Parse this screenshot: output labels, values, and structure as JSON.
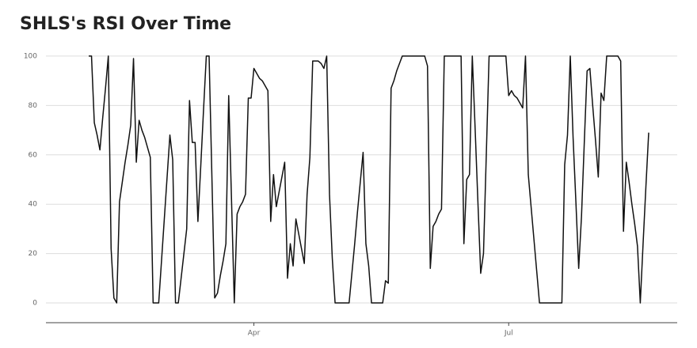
{
  "chart_data": {
    "type": "line",
    "title": "SHLS's RSI Over Time",
    "categories": [
      null,
      null,
      null,
      null,
      null,
      null,
      null,
      null,
      null,
      null,
      null,
      null,
      null,
      null,
      null,
      null,
      null,
      null,
      null,
      null,
      null,
      null,
      null,
      null,
      null,
      null,
      null,
      null,
      null,
      null,
      null,
      null,
      null,
      null,
      null,
      null,
      null,
      null,
      null,
      null,
      null,
      null,
      null,
      null,
      null,
      null,
      null,
      null,
      null,
      null,
      null,
      null,
      null,
      null,
      null,
      null,
      null,
      null,
      null,
      "Apr",
      null,
      null,
      null,
      null,
      null,
      null,
      null,
      null,
      null,
      null,
      null,
      null,
      null,
      null,
      null,
      null,
      null,
      null,
      null,
      null,
      null,
      null,
      null,
      null,
      null,
      null,
      null,
      null,
      null,
      null,
      null,
      null,
      null,
      null,
      null,
      null,
      null,
      null,
      null,
      null,
      null,
      null,
      null,
      null,
      null,
      null,
      null,
      null,
      null,
      null,
      null,
      null,
      null,
      null,
      null,
      null,
      null,
      null,
      null,
      null,
      null,
      null,
      null,
      null,
      null,
      null,
      null,
      null,
      null,
      null,
      null,
      null,
      null,
      null,
      null,
      null,
      null,
      null,
      null,
      null,
      null,
      null,
      null,
      null,
      null,
      null,
      null,
      null,
      null,
      null,
      "Jul",
      null,
      null,
      null,
      null,
      null,
      null,
      null,
      null,
      null,
      null,
      null,
      null,
      null,
      null,
      null,
      null,
      null,
      null,
      null,
      null,
      null,
      null,
      null,
      null,
      null,
      null,
      null,
      null,
      null,
      null,
      null,
      null,
      null,
      null,
      null,
      null,
      null,
      null,
      null,
      null,
      null,
      null,
      null,
      null,
      null,
      null,
      null,
      null,
      null,
      null
    ],
    "values": [
      100,
      100,
      73,
      68,
      62,
      75,
      87,
      100,
      22,
      2,
      0,
      41,
      49,
      57,
      64,
      72,
      99,
      57,
      74,
      70,
      67,
      63,
      59,
      0,
      0,
      0,
      17,
      34,
      51,
      68,
      58,
      0,
      0,
      10,
      20,
      30,
      82,
      65,
      65,
      33,
      55,
      78,
      100,
      100,
      51,
      2,
      4,
      11,
      17,
      24,
      84,
      42,
      0,
      36,
      39,
      41,
      44,
      83,
      83,
      95,
      93,
      91,
      90,
      88,
      86,
      33,
      52,
      39,
      45,
      51,
      57,
      10,
      24,
      15,
      34,
      28,
      22,
      16,
      44,
      59,
      98,
      98,
      98,
      97,
      95,
      100,
      44,
      18,
      0,
      0,
      0,
      0,
      0,
      0,
      12,
      24,
      37,
      49,
      61,
      24,
      15,
      0,
      0,
      0,
      0,
      0,
      9,
      8,
      87,
      90,
      94,
      97,
      100,
      100,
      100,
      100,
      100,
      100,
      100,
      100,
      100,
      96,
      14,
      31,
      33,
      36,
      38,
      100,
      100,
      100,
      100,
      100,
      100,
      100,
      24,
      50,
      52,
      100,
      71,
      41,
      12,
      20,
      60,
      100,
      100,
      100,
      100,
      100,
      100,
      100,
      84,
      86,
      84,
      83,
      81,
      79,
      100,
      52,
      39,
      26,
      13,
      0,
      0,
      0,
      0,
      0,
      0,
      0,
      0,
      0,
      56,
      68,
      100,
      67,
      41,
      14,
      35,
      65,
      94,
      95,
      80,
      66,
      51,
      85,
      82,
      100,
      100,
      100,
      100,
      100,
      98,
      29,
      57,
      49,
      40,
      32,
      23,
      0,
      24,
      47,
      69
    ],
    "color": "#111111",
    "ylim": [
      -8,
      103.5
    ],
    "yticks": [
      0,
      20,
      40,
      60,
      80,
      100
    ],
    "grid": true
  }
}
